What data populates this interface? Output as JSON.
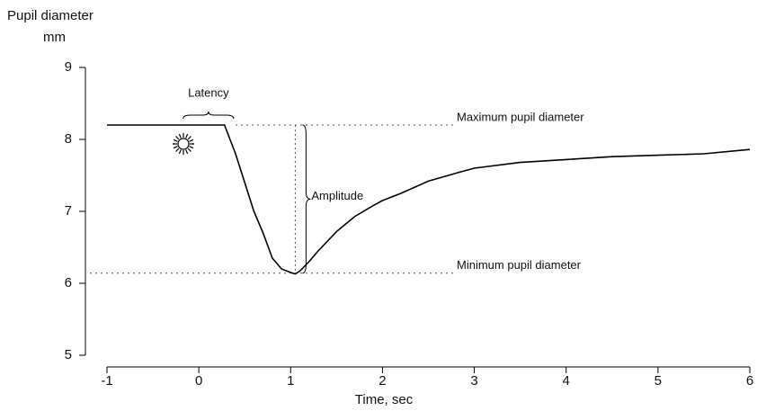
{
  "chart_data": {
    "type": "line",
    "ylabel": "Pupil diameter",
    "yunit": "mm",
    "xlabel": "Time, sec",
    "xlim": [
      -1,
      6
    ],
    "xticks": [
      -1,
      0,
      1,
      2,
      3,
      4,
      5,
      6
    ],
    "ylim": [
      5,
      9
    ],
    "yticks": [
      5,
      6,
      7,
      8,
      9
    ],
    "color": "#000000",
    "x": [
      -1,
      -0.5,
      0,
      0.28,
      0.4,
      0.5,
      0.6,
      0.7,
      0.8,
      0.9,
      1.0,
      1.05,
      1.1,
      1.2,
      1.3,
      1.5,
      1.7,
      1.9,
      2.0,
      2.2,
      2.5,
      2.8,
      3.0,
      3.5,
      4.0,
      4.5,
      5.0,
      5.5,
      6.0
    ],
    "values": [
      8.2,
      8.2,
      8.2,
      8.2,
      7.8,
      7.4,
      7.0,
      6.7,
      6.35,
      6.2,
      6.15,
      6.13,
      6.17,
      6.3,
      6.45,
      6.72,
      6.93,
      7.08,
      7.15,
      7.25,
      7.42,
      7.53,
      7.6,
      7.68,
      7.72,
      7.76,
      7.78,
      7.8,
      7.86
    ],
    "reference_lines": [
      {
        "label": "Maximum pupil diameter",
        "y": 8.2
      },
      {
        "label": "Minimum pupil diameter",
        "y": 6.14
      }
    ],
    "amplitude": {
      "label": "Amplitude",
      "x": 1.05
    },
    "latency": {
      "label": "Latency",
      "x": [
        -0.17,
        0.38
      ]
    }
  }
}
